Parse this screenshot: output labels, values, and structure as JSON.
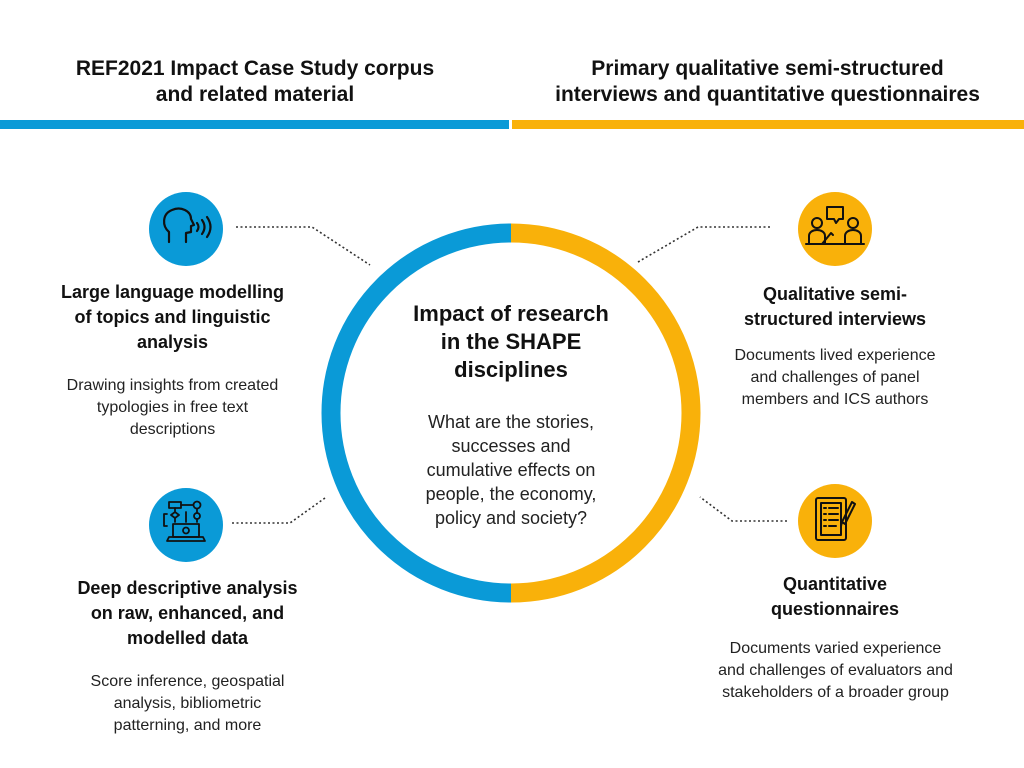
{
  "colors": {
    "left_accent": "#0A9AD7",
    "right_accent": "#F9B10A",
    "text": "#111111",
    "leader_line": "#333333"
  },
  "header": {
    "left": {
      "line1": "REF2021 Impact Case Study corpus",
      "line2": "and related material"
    },
    "right": {
      "line1": "Primary qualitative semi-structured",
      "line2": "interviews and quantitative questionnaires"
    }
  },
  "center": {
    "title": [
      "Impact of research",
      "in the SHAPE",
      "disciplines"
    ],
    "question": [
      "What are the stories,",
      "successes and",
      "cumulative effects on",
      "people, the economy,",
      "policy and society?"
    ]
  },
  "nodes": {
    "llm": {
      "icon": "speaking-head-icon",
      "title": [
        "Large language modelling",
        "of topics and linguistic",
        "analysis"
      ],
      "desc": [
        "Drawing insights from created",
        "typologies in free text",
        "descriptions"
      ]
    },
    "deep": {
      "icon": "flowchart-laptop-icon",
      "title": [
        "Deep descriptive analysis",
        "on raw, enhanced, and",
        "modelled data"
      ],
      "desc": [
        "Score inference, geospatial",
        "analysis, bibliometric",
        "patterning, and more"
      ]
    },
    "interviews": {
      "icon": "interview-people-icon",
      "title": [
        "Qualitative semi-",
        "structured interviews"
      ],
      "desc": [
        "Documents lived experience",
        "and challenges of panel",
        "members and ICS authors"
      ]
    },
    "questionnaires": {
      "icon": "questionnaire-clipboard-icon",
      "title": [
        "Quantitative",
        "questionnaires"
      ],
      "desc": [
        "Documents varied experience",
        "and challenges of evaluators and",
        "stakeholders of a broader group"
      ]
    }
  }
}
